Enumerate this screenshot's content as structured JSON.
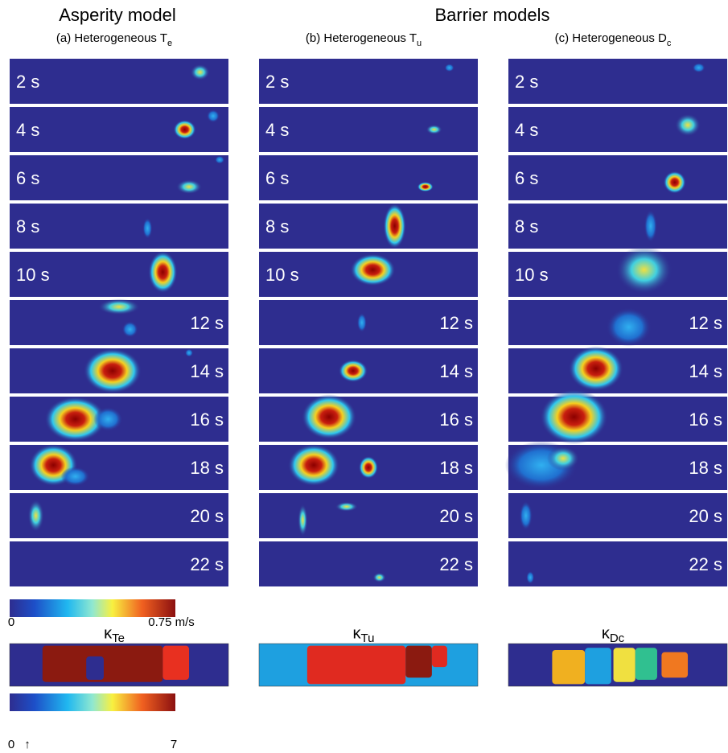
{
  "titles": {
    "asperity": "Asperity model",
    "barrier": "Barrier models"
  },
  "columns": [
    {
      "label": "(a) Heterogeneous T",
      "subscript": "e",
      "snapshots": [
        "2 s",
        "4 s",
        "6 s",
        "8 s",
        "10 s",
        "12 s",
        "14 s",
        "16 s",
        "18 s",
        "20 s",
        "22 s"
      ],
      "kappa": {
        "symbol": "κ",
        "subscript": "Te"
      }
    },
    {
      "label": "(b) Heterogeneous T",
      "subscript": "u",
      "snapshots": [
        "2 s",
        "4 s",
        "6 s",
        "8 s",
        "10 s",
        "12 s",
        "14 s",
        "16 s",
        "18 s",
        "20 s",
        "22 s"
      ],
      "kappa": {
        "symbol": "κ",
        "subscript": "Tu"
      }
    },
    {
      "label": "(c) Heterogeneous D",
      "subscript": "c",
      "snapshots": [
        "2 s",
        "4 s",
        "6 s",
        "8 s",
        "10 s",
        "12 s",
        "14 s",
        "16 s",
        "18 s",
        "20 s",
        "22 s"
      ],
      "kappa": {
        "symbol": "κ",
        "subscript": "Dc"
      }
    }
  ],
  "slip_rate_colorbar": {
    "min_label": "0",
    "max_label": "0.75 m/s"
  },
  "kappa_colorbar": {
    "min_label": "0",
    "arrow": "↑",
    "max_label": "7"
  }
}
